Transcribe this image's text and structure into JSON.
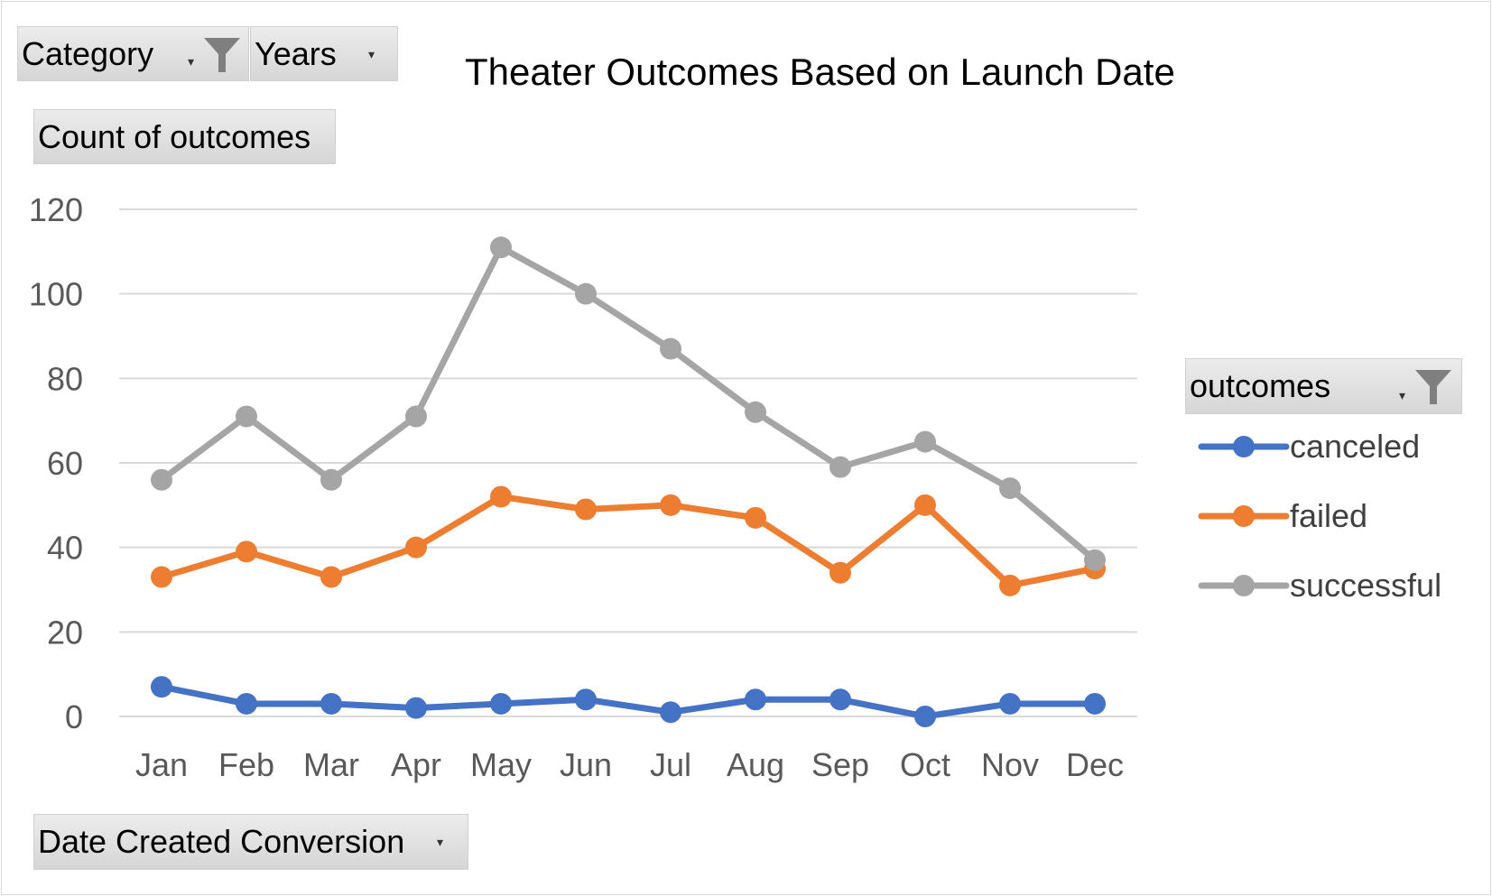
{
  "filters": {
    "category_label": "Category",
    "years_label": "Years",
    "values_label": "Count of outcomes",
    "axis_field_label": "Date Created Conversion",
    "legend_field_label": "outcomes"
  },
  "colors": {
    "canceled": "#4472c4",
    "failed": "#ed7d31",
    "successful": "#a5a5a5",
    "grid": "#d9d9d9",
    "axis_text": "#595959"
  },
  "chart_data": {
    "type": "line",
    "title": "Theater Outcomes Based on Launch Date",
    "xlabel": "",
    "ylabel": "",
    "categories": [
      "Jan",
      "Feb",
      "Mar",
      "Apr",
      "May",
      "Jun",
      "Jul",
      "Aug",
      "Sep",
      "Oct",
      "Nov",
      "Dec"
    ],
    "ylim": [
      0,
      120
    ],
    "yticks": [
      0,
      20,
      40,
      60,
      80,
      100,
      120
    ],
    "grid": true,
    "legend": "right",
    "series": [
      {
        "name": "canceled",
        "values": [
          7,
          3,
          3,
          2,
          3,
          4,
          1,
          4,
          4,
          0,
          3,
          3
        ]
      },
      {
        "name": "failed",
        "values": [
          33,
          39,
          33,
          40,
          52,
          49,
          50,
          47,
          34,
          50,
          31,
          35
        ]
      },
      {
        "name": "successful",
        "values": [
          56,
          71,
          56,
          71,
          111,
          100,
          87,
          72,
          59,
          65,
          54,
          37
        ]
      }
    ]
  }
}
